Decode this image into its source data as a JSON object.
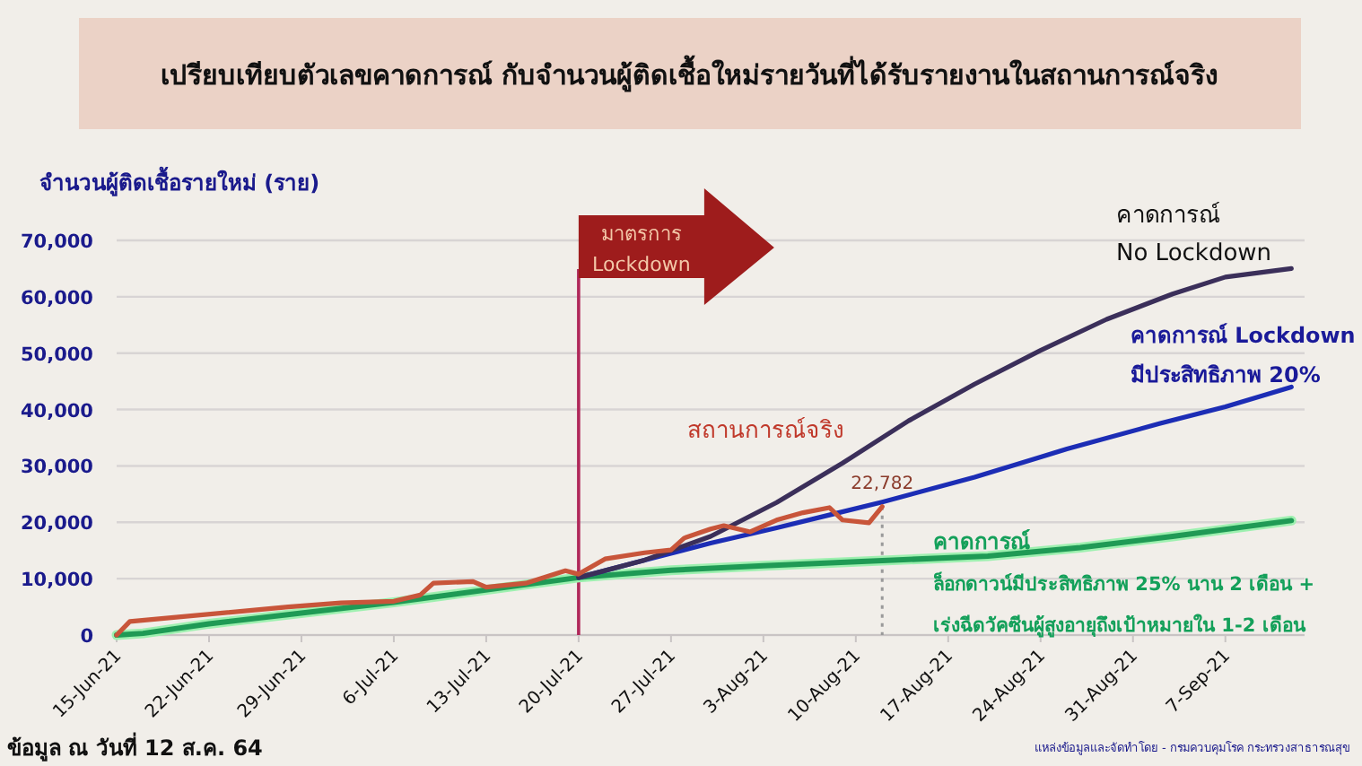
{
  "chart_data": {
    "type": "line",
    "title": "เปรียบเทียบตัวเลขคาดการณ์ กับจำนวนผู้ติดเชื้อใหม่รายวันที่ได้รับรายงานในสถานการณ์จริง",
    "ylabel": "จำนวนผู้ติดเชื้อรายใหม่ (ราย)",
    "xlim": [
      "--06-15",
      "--09-13"
    ],
    "xticks": [
      {
        "value": "--06-15",
        "label": "15-Jun-21"
      },
      {
        "value": "--06-22",
        "label": "22-Jun-21"
      },
      {
        "value": "--06-29",
        "label": "29-Jun-21"
      },
      {
        "value": "--07-06",
        "label": "6-Jul-21"
      },
      {
        "value": "--07-13",
        "label": "13-Jul-21"
      },
      {
        "value": "--07-20",
        "label": "20-Jul-21"
      },
      {
        "value": "--07-27",
        "label": "27-Jul-21"
      },
      {
        "value": "--08-03",
        "label": "3-Aug-21"
      },
      {
        "value": "--08-10",
        "label": "10-Aug-21"
      },
      {
        "value": "--08-17",
        "label": "17-Aug-21"
      },
      {
        "value": "--08-24",
        "label": "24-Aug-21"
      },
      {
        "value": "--08-31",
        "label": "31-Aug-21"
      },
      {
        "value": "--09-07",
        "label": "7-Sep-21"
      }
    ],
    "ylim": [
      0,
      70000
    ],
    "yticks": [
      0,
      {
        "value": 10000,
        "label": "10,000"
      },
      {
        "value": 20000,
        "label": "20,000"
      },
      {
        "value": 30000,
        "label": "30,000"
      },
      {
        "value": 40000,
        "label": "40,000"
      },
      {
        "value": 50000,
        "label": "50,000"
      },
      {
        "value": 60000,
        "label": "60,000"
      },
      {
        "value": 70000,
        "label": "70,000"
      }
    ],
    "grid": "y",
    "legend": false,
    "marker": "none",
    "line_style": "solid",
    "series": [
      {
        "name": "สถานการณ์จริง",
        "color": "#c8553a",
        "x": [
          "--06-15",
          "--06-16",
          "--06-28",
          "--07-02",
          "--07-06",
          "--07-08",
          "--07-09",
          "--07-12",
          "--07-13",
          "--07-16",
          "--07-19",
          "--07-20",
          "--07-22",
          "--07-25",
          "--07-27",
          "--07-28",
          "--07-30",
          "--07-31",
          "--08-02",
          "--08-04",
          "--08-06",
          "--08-08",
          "--08-09",
          "--08-11",
          "--08-12"
        ],
        "values": [
          0,
          2400,
          5000,
          5700,
          6000,
          7100,
          9200,
          9500,
          8500,
          9200,
          11400,
          10800,
          13500,
          14600,
          15100,
          17200,
          18800,
          19400,
          18300,
          20400,
          21700,
          22600,
          20400,
          19900,
          22782
        ]
      },
      {
        "name": "คาดการณ์\nNo Lockdown",
        "color": "#3b2f5a",
        "x": [
          "--07-20",
          "--07-25",
          "--07-30",
          "--08-04",
          "--08-09",
          "--08-14",
          "--08-19",
          "--08-24",
          "--08-29",
          "--09-03",
          "--09-07",
          "--09-12"
        ],
        "values": [
          10200,
          13300,
          17500,
          23500,
          30500,
          38000,
          44500,
          50500,
          56000,
          60500,
          63500,
          65000
        ]
      },
      {
        "name": "คาดการณ์ Lockdown\nมีประสิทธิภาพ 20%",
        "color": "#1c2db5",
        "x": [
          "--07-20",
          "--07-25",
          "--07-30",
          "--08-04",
          "--08-08",
          "--08-12",
          "--08-19",
          "--08-26",
          "--09-02",
          "--09-07",
          "--09-12"
        ],
        "values": [
          10200,
          13300,
          16300,
          19000,
          21300,
          23600,
          28000,
          33000,
          37500,
          40500,
          44000
        ]
      },
      {
        "name": "คาดการณ์\nล็อกดาวน์มีประสิทธิภาพ 25% นาน 2 เดือน +\nเร่งฉีดวัคซีนผู้สูงอายุถึงเป้าหมายใน 1-2 เดือน",
        "color": "#1f9a55",
        "x": [
          "--06-15",
          "--06-17",
          "--06-22",
          "--07-06",
          "--07-20",
          "--07-27",
          "--08-03",
          "--08-12",
          "--08-20",
          "--08-27",
          "--09-03",
          "--09-12"
        ],
        "values": [
          0,
          300,
          2000,
          5800,
          10200,
          11500,
          12300,
          13200,
          14000,
          15500,
          17500,
          20300
        ]
      }
    ],
    "ref_lines": [
      {
        "axis": "x",
        "value": "--07-20",
        "color": "#b0285a",
        "line_style": "solid"
      },
      {
        "axis": "x",
        "value": "--08-12",
        "color": "#9a9a9a",
        "line_style": "dotted"
      }
    ],
    "annotations": [
      "มาตรการ\nLockdown",
      {
        "text": "22,782",
        "x": "--08-12",
        "y": 22782
      },
      "ข้อมูล ณ วันที่ 12 ส.ค. 64",
      "แหล่งข้อมูลและจัดทำโดย - กรมควบคุมโรค กระทรวงสาธารณสุข"
    ]
  }
}
